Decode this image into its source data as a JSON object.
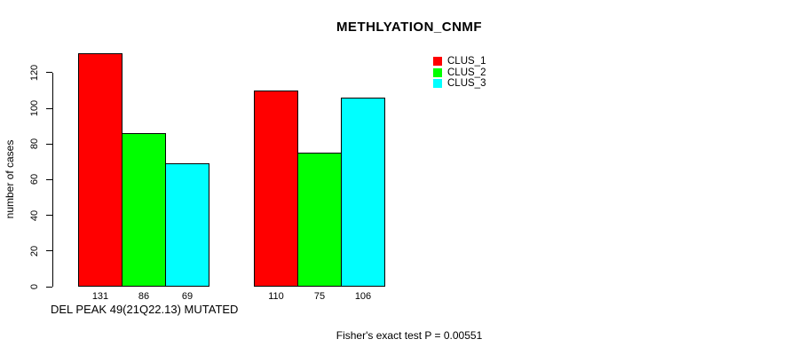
{
  "chart_data": {
    "type": "bar",
    "title": "METHLYATION_CNMF",
    "ylabel": "number of cases",
    "xlabel": "DEL PEAK 49(21Q22.13) MUTATED",
    "footnote": "Fisher's exact test P = 0.00551",
    "yticks": [
      0,
      20,
      40,
      60,
      80,
      100,
      120
    ],
    "ylim": [
      0,
      131
    ],
    "grid": false,
    "legend_position": "top-right-inside",
    "n_groups": 2,
    "series": [
      {
        "name": "CLUS_1",
        "color": "#ff0000",
        "values": [
          131,
          110
        ]
      },
      {
        "name": "CLUS_2",
        "color": "#00ff00",
        "values": [
          86,
          75
        ]
      },
      {
        "name": "CLUS_3",
        "color": "#00ffff",
        "values": [
          69,
          106
        ]
      }
    ],
    "bar_value_labels": [
      [
        131,
        86,
        69
      ],
      [
        110,
        75,
        106
      ]
    ],
    "axis_color": "#000000",
    "background_color": "#ffffff"
  }
}
